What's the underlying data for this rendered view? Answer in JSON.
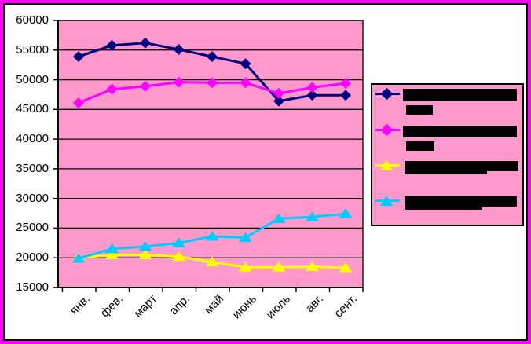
{
  "frame": {
    "outer_border_color": "#FF00FF",
    "inner_border_color": "#000000",
    "background": "#FFFFFF"
  },
  "chart_data": {
    "type": "line",
    "title": "",
    "categories": [
      "янв.",
      "фев.",
      "март",
      "апр.",
      "май",
      "июнь",
      "июль",
      "авг.",
      "сент."
    ],
    "x_tick_rotation_deg": -45,
    "ylim": [
      15000,
      60000
    ],
    "ytick_step": 5000,
    "ytick_labels": [
      "60000",
      "55000",
      "50000",
      "45000",
      "40000",
      "35000",
      "30000",
      "25000",
      "20000",
      "15000"
    ],
    "grid": true,
    "plot_background": "#FF99CC",
    "axis_color": "#000000",
    "gridline_color": "#000000",
    "series": [
      {
        "id": 1,
        "label": "",
        "label_redacted": true,
        "color": "#000080",
        "marker": "diamond",
        "values": [
          53900,
          55800,
          56200,
          55100,
          53900,
          52700,
          46400,
          47400,
          47400
        ]
      },
      {
        "id": 2,
        "label": "",
        "label_redacted": true,
        "color": "#FF00FF",
        "marker": "diamond",
        "values": [
          46100,
          48400,
          48900,
          49600,
          49500,
          49500,
          47700,
          48700,
          49400
        ]
      },
      {
        "id": 3,
        "label": "",
        "label_redacted": true,
        "color": "#FFFF00",
        "marker": "triangle",
        "values": [
          20000,
          20500,
          20500,
          20200,
          19300,
          18400,
          18400,
          18500,
          18300
        ]
      },
      {
        "id": 4,
        "label": "",
        "label_redacted": true,
        "color": "#00CCFF",
        "marker": "triangle",
        "values": [
          19900,
          21500,
          21900,
          22500,
          23600,
          23400,
          26600,
          26900,
          27400
        ]
      }
    ],
    "legend": {
      "position": "right",
      "background": "#FF99CC",
      "border_color": "#000000",
      "entries": [
        {
          "series": 1,
          "label": "",
          "label_redacted": true,
          "redaction_lines": 2
        },
        {
          "series": 2,
          "label": "",
          "label_redacted": true,
          "redaction_lines": 2
        },
        {
          "series": 3,
          "label": "",
          "label_redacted": true,
          "redaction_lines": 1
        },
        {
          "series": 4,
          "label": "",
          "label_redacted": true,
          "redaction_lines": 1
        }
      ]
    }
  }
}
